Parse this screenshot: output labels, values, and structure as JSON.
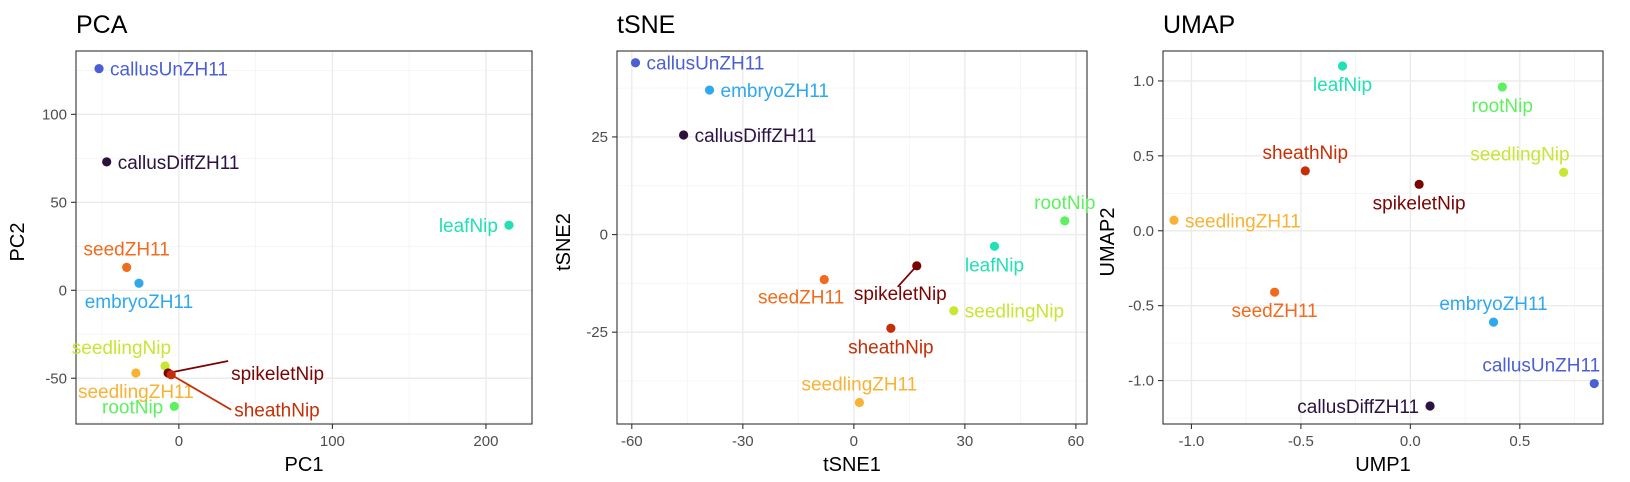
{
  "colors": {
    "callusUnZH11": "#4a5fd6",
    "callusDiffZH11": "#2d1240",
    "embryoZH11": "#2fa8ef",
    "seedZH11": "#f26b1c",
    "seedlingZH11": "#f9b233",
    "seedlingNip": "#c8e634",
    "rootNip": "#5df25d",
    "leafNip": "#22e0b5",
    "sheathNip": "#c62f06",
    "spikeletNip": "#7a0403"
  },
  "chart_data": [
    {
      "type": "scatter",
      "title": "PCA",
      "xlabel": "PC1",
      "ylabel": "PC2",
      "xlim": [
        -67,
        230
      ],
      "ylim": [
        -76,
        136
      ],
      "xticks": [
        0,
        100,
        200
      ],
      "yticks": [
        -50,
        0,
        50,
        100
      ],
      "xticklabels": [
        "0",
        "100",
        "200"
      ],
      "yticklabels": [
        "-50",
        "0",
        "50",
        "100"
      ],
      "grid": true,
      "points": [
        {
          "name": "callusUnZH11",
          "x": -52,
          "y": 126,
          "label_pos": "right"
        },
        {
          "name": "callusDiffZH11",
          "x": -47,
          "y": 73,
          "label_pos": "right"
        },
        {
          "name": "leafNip",
          "x": 215,
          "y": 37,
          "label_pos": "left"
        },
        {
          "name": "seedZH11",
          "x": -34,
          "y": 13,
          "label_pos": "above"
        },
        {
          "name": "embryoZH11",
          "x": -26,
          "y": 4,
          "label_pos": "below"
        },
        {
          "name": "seedlingNip",
          "x": -9,
          "y": -43,
          "label_pos": "above-left"
        },
        {
          "name": "seedlingZH11",
          "x": -28,
          "y": -47,
          "label_pos": "below"
        },
        {
          "name": "rootNip",
          "x": -3,
          "y": -66,
          "label_pos": "left"
        },
        {
          "name": "spikeletNip",
          "x": -7,
          "y": -47,
          "label_pos": "leader-up-right"
        },
        {
          "name": "sheathNip",
          "x": -5,
          "y": -48,
          "label_pos": "leader-down-right"
        }
      ]
    },
    {
      "type": "scatter",
      "title": "tSNE",
      "xlabel": "tSNE1",
      "ylabel": "tSNE2",
      "xlim": [
        -64,
        63
      ],
      "ylim": [
        -48.5,
        47
      ],
      "xticks": [
        -60,
        -30,
        0,
        30,
        60
      ],
      "yticks": [
        -25,
        0,
        25
      ],
      "xticklabels": [
        "-60",
        "-30",
        "0",
        "30",
        "60"
      ],
      "yticklabels": [
        "-25",
        "0",
        "25"
      ],
      "grid": true,
      "points": [
        {
          "name": "callusUnZH11",
          "x": -59,
          "y": 44,
          "label_pos": "right"
        },
        {
          "name": "embryoZH11",
          "x": -39,
          "y": 37,
          "label_pos": "right"
        },
        {
          "name": "callusDiffZH11",
          "x": -46,
          "y": 25.5,
          "label_pos": "right"
        },
        {
          "name": "rootNip",
          "x": 57,
          "y": 3.5,
          "label_pos": "above"
        },
        {
          "name": "leafNip",
          "x": 38,
          "y": -3,
          "label_pos": "below"
        },
        {
          "name": "seedZH11",
          "x": -8,
          "y": -11.5,
          "label_pos": "below-left"
        },
        {
          "name": "spikeletNip",
          "x": 17,
          "y": -8,
          "label_pos": "leader-below-left"
        },
        {
          "name": "seedlingNip",
          "x": 27,
          "y": -19.5,
          "label_pos": "right"
        },
        {
          "name": "sheathNip",
          "x": 10,
          "y": -24,
          "label_pos": "below"
        },
        {
          "name": "seedlingZH11",
          "x": 1.5,
          "y": -43,
          "label_pos": "above"
        }
      ]
    },
    {
      "type": "scatter",
      "title": "UMAP",
      "xlabel": "UMP1",
      "ylabel": "UMAP2",
      "xlim": [
        -1.13,
        0.88
      ],
      "ylim": [
        -1.29,
        1.2
      ],
      "xticks": [
        -1.0,
        -0.5,
        0.0,
        0.5
      ],
      "yticks": [
        -1.0,
        -0.5,
        0.0,
        0.5,
        1.0
      ],
      "xticklabels": [
        "-1.0",
        "-0.5",
        "0.0",
        "0.5"
      ],
      "yticklabels": [
        "-1.0",
        "-0.5",
        "0.0",
        "0.5",
        "1.0"
      ],
      "grid": true,
      "points": [
        {
          "name": "leafNip",
          "x": -0.31,
          "y": 1.1,
          "label_pos": "below"
        },
        {
          "name": "rootNip",
          "x": 0.42,
          "y": 0.96,
          "label_pos": "below"
        },
        {
          "name": "sheathNip",
          "x": -0.48,
          "y": 0.4,
          "label_pos": "above"
        },
        {
          "name": "seedlingNip",
          "x": 0.7,
          "y": 0.39,
          "label_pos": "above-left"
        },
        {
          "name": "spikeletNip",
          "x": 0.04,
          "y": 0.31,
          "label_pos": "below"
        },
        {
          "name": "seedlingZH11",
          "x": -1.08,
          "y": 0.07,
          "label_pos": "right"
        },
        {
          "name": "seedZH11",
          "x": -0.62,
          "y": -0.41,
          "label_pos": "below"
        },
        {
          "name": "embryoZH11",
          "x": 0.38,
          "y": -0.61,
          "label_pos": "above"
        },
        {
          "name": "callusUnZH11",
          "x": 0.84,
          "y": -1.02,
          "label_pos": "above-left"
        },
        {
          "name": "callusDiffZH11",
          "x": 0.09,
          "y": -1.17,
          "label_pos": "left"
        }
      ]
    }
  ]
}
